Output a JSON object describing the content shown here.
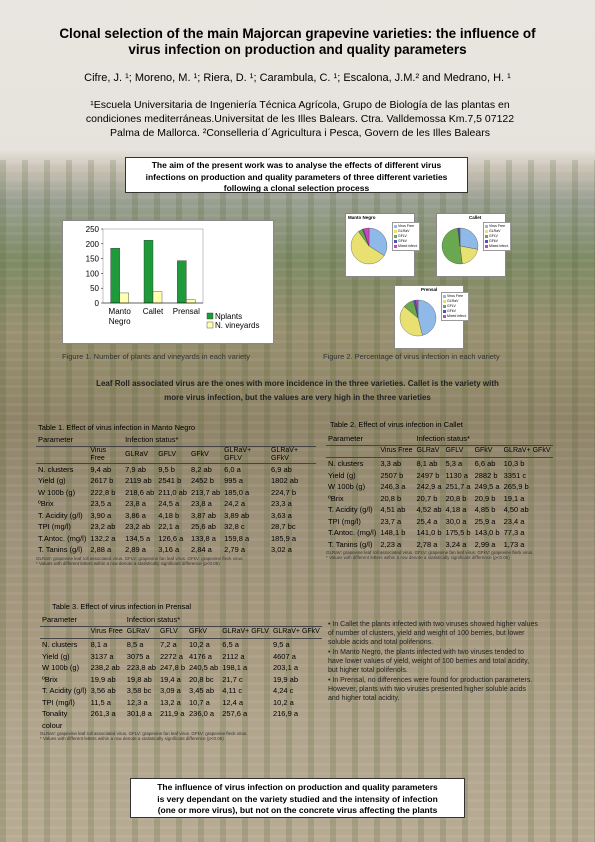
{
  "header": {
    "title_line1": "Clonal selection of the main Majorcan grapevine varieties: the influence of",
    "title_line2": "virus infection on production and quality parameters",
    "authors": "Cifre, J. ¹; Moreno, M. ¹; Riera, D. ¹; Carambula, C. ¹; Escalona, J.M.² and Medrano, H. ¹",
    "affil_line1": "¹Escuela Universitaria de Ingeniería Técnica Agrícola, Grupo de Biología de las plantas en",
    "affil_line2": "condiciones mediterráneas.Universitat de les Illes Balears. Ctra. Valldemossa Km.7,5 07122",
    "affil_line3": "Palma de Mallorca. ²Conselleria d´Agricultura i Pesca, Govern de les Illes Balears"
  },
  "aim": {
    "line1": "The aim of the present work was to analyse the effects of different virus",
    "line2": "infections on production and quality parameters of three different varieties",
    "line3": "following a clonal selection process"
  },
  "figure1": {
    "caption": "Figure 1. Number of plants and vineyards in each variety"
  },
  "figure2": {
    "caption": "Figure 2. Percentage of virus infection in each variety",
    "legend": [
      "Virus Free",
      "GLRaV",
      "GFLV",
      "GFkV",
      "Mixed infect."
    ],
    "colors": [
      "#8fb9e8",
      "#e8e070",
      "#6aa84f",
      "#5050c0",
      "#d040c0"
    ]
  },
  "chart_data": [
    {
      "type": "bar",
      "categories": [
        "Manto Negro",
        "Callet",
        "Prensal"
      ],
      "series": [
        {
          "name": "Nplants",
          "values": [
            185,
            212,
            143
          ],
          "color": "#1f9a3a"
        },
        {
          "name": "N. vineyards",
          "values": [
            34,
            38,
            11
          ],
          "color": "#ffffb0"
        }
      ],
      "ylim": [
        0,
        250
      ],
      "yticks": [
        0,
        50,
        100,
        150,
        200,
        250
      ],
      "legend_position": "bottom-right"
    },
    {
      "type": "pie",
      "title": "Manto Negro",
      "labels": [
        "Virus Free",
        "GLRaV",
        "GFLV",
        "GFkV",
        "Mixed infect."
      ],
      "values": [
        34,
        56,
        4,
        1,
        5
      ]
    },
    {
      "type": "pie",
      "title": "Callet",
      "labels": [
        "Virus Free",
        "GLRaV",
        "GFLV",
        "GFkV",
        "Mixed infect."
      ],
      "values": [
        28,
        20,
        50,
        1,
        1
      ]
    },
    {
      "type": "pie",
      "title": "Prensal",
      "labels": [
        "Virus Free",
        "GLRaV",
        "GFLV",
        "GFkV",
        "Mixed infect."
      ],
      "values": [
        46,
        40,
        10,
        2,
        2
      ]
    }
  ],
  "highlight": {
    "line1": "Leaf Roll associated virus are the ones with more incidence in the three varieties. Callet is the variety with",
    "line2": "more virus infection, but the values are very high in the three varieties"
  },
  "table1": {
    "caption": "Table 1. Effect of virus infection in Manto Negro",
    "group_header": [
      "Parameter",
      "Infection status*"
    ],
    "columns": [
      "",
      "Virus Free",
      "GLRaV",
      "GFLV",
      "GFkV",
      "GLRaV+ GFLV",
      "GLRaV+ GFkV"
    ],
    "rows": [
      [
        "N. clusters",
        "9,4 ab",
        "7,9 ab",
        "9,5 b",
        "8,2 ab",
        "6,0 a",
        "6,9 ab"
      ],
      [
        "Yield (g)",
        "2617 b",
        "2119 ab",
        "2541 b",
        "2452 b",
        "995 a",
        "1802 ab"
      ],
      [
        "W 100b (g)",
        "222,8 b",
        "218,6 ab",
        "211,0 ab",
        "213,7 ab",
        "185,0 a",
        "224,7 b"
      ],
      [
        "ºBrix",
        "23,5 a",
        "23,8 a",
        "24,5 a",
        "23,8 a",
        "24,2 a",
        "23,3 a"
      ],
      [
        "T. Acidity (g/l)",
        "3,90 a",
        "3,86 a",
        "4,18 b",
        "3,87 ab",
        "3,89 ab",
        "3,63 a"
      ],
      [
        "TPI (mg/l)",
        "23,2 ab",
        "23,2 ab",
        "22,1 a",
        "25,6 ab",
        "32,8 c",
        "28,7 bc"
      ],
      [
        "T.Antoc. (mg/l)",
        "132,2 a",
        "134,5 a",
        "126,6 a",
        "133,8 a",
        "159,8 a",
        "185,9 a"
      ],
      [
        "T. Tanins (g/l)",
        "2,88 a",
        "2,89 a",
        "3,16 a",
        "2,84 a",
        "2,79 a",
        "3,02 a"
      ]
    ],
    "note1": "GLRaV: grapevine leaf roll associated virus. GFLV: grapevine fan leaf virus. GFkV: grapevine fleck virus.",
    "note2": "* Values with different letters within a row denote a statistically significant difference (p<0.05)"
  },
  "table2": {
    "caption": "Table 2. Effect of virus infection in Callet",
    "group_header": [
      "Parameter",
      "Infection status*"
    ],
    "columns": [
      "",
      "Virus Free",
      "GLRaV",
      "GFLV",
      "GFkV",
      "GLRaV+ GFkV"
    ],
    "rows": [
      [
        "N. clusters",
        "3,3 ab",
        "8,1 ab",
        "5,3 a",
        "6,6 ab",
        "10,3 b"
      ],
      [
        "Yield (g)",
        "2507 b",
        "2497 b",
        "1130 a",
        "2882 b",
        "3351 c"
      ],
      [
        "W 100b (g)",
        "246,3 a",
        "242,9 a",
        "251,7 a",
        "249,5 a",
        "265,9 b"
      ],
      [
        "ºBrix",
        "20,8 b",
        "20,7 b",
        "20,8 b",
        "20,9 b",
        "19,1 a"
      ],
      [
        "T. Acidity (g/l)",
        "4,51 ab",
        "4,52 ab",
        "4,18 a",
        "4,85 b",
        "4,50 ab"
      ],
      [
        "TPI (mg/l)",
        "23,7 a",
        "25,4 a",
        "30,0 a",
        "25,9 a",
        "23,4 a"
      ],
      [
        "T.Antoc. (mg/l)",
        "148,1 b",
        "141,0 b",
        "175,5 b",
        "143,0 b",
        "77,3 a"
      ],
      [
        "T. Tanins (g/l)",
        "2,23 a",
        "2,78 a",
        "3,24 a",
        "2,99 a",
        "1,73 a"
      ]
    ],
    "note1": "GLRaV: grapevine leaf roll associated virus. GFLV: grapevine fan leaf virus. GFkV: grapevine fleck virus.",
    "note2": "* Values with different letters within a row denote a statistically significant difference (p<0.05)"
  },
  "table3": {
    "caption": "Table 3. Effect of virus infection in Prensal",
    "group_header": [
      "Parameter",
      "Infection status*"
    ],
    "columns": [
      "",
      "Virus Free",
      "GLRaV",
      "GFLV",
      "GFkV",
      "GLRaV+ GFLV",
      "GLRaV+ GFkV"
    ],
    "rows": [
      [
        "N. clusters",
        "8,1 a",
        "8,5 a",
        "7,2 a",
        "10,2 a",
        "6,5 a",
        "9,5 a"
      ],
      [
        "Yield (g)",
        "3137 a",
        "3075 a",
        "2272 a",
        "4176 a",
        "2112 a",
        "4607 a"
      ],
      [
        "W 100b (g)",
        "238,2 ab",
        "223,8 ab",
        "247,8 b",
        "240,5 ab",
        "198,1 a",
        "203,1 a"
      ],
      [
        "ºBrix",
        "19,9 ab",
        "19,8 ab",
        "19,4 a",
        "20,8 bc",
        "21,7 c",
        "19,9 ab"
      ],
      [
        "T. Acidity (g/l)",
        "3,56 ab",
        "3,58 bc",
        "3,09 a",
        "3,45 ab",
        "4,11 c",
        "4,24 c"
      ],
      [
        "TPI (mg/l)",
        "11,5 a",
        "12,3 a",
        "13,2 a",
        "10,7 a",
        "12,4 a",
        "10,2 a"
      ],
      [
        "Tonality",
        "261,3 a",
        "301,8 a",
        "211,9 a",
        "236,0 a",
        "257,6 a",
        "216,9 a"
      ],
      [
        "colour",
        "",
        "",
        "",
        "",
        "",
        ""
      ]
    ],
    "note1": "GLRaV: grapevine leaf roll associated virus. GFLV: grapevine fan leaf virus. GFkV: grapevine fleck virus.",
    "note2": "* Values with different letters within a row denote a statistically significant difference (p<0.05)"
  },
  "bullets": [
    "• In Callet the plants infected with two viruses showed higher values of number of clusters, yield and weight of 100 berries, but lower soluble acids and total polifenons.",
    "• In Manto Negro, the plants infected with two viruses tended to have lower values of yield, weight of 100 berries and total acidity, but higher total polifenols.",
    "• In Prensal, no differences were found for production parameters. However, plants with two viruses presented higher soluble acids and higher total acidity."
  ],
  "conclusion": {
    "line1": "The influence of virus infection on production and quality parameters",
    "line2": "is very dependant on the variety studied and the intensity of infection",
    "line3": "(one or more virus), but not on the concrete virus affecting the plants"
  }
}
